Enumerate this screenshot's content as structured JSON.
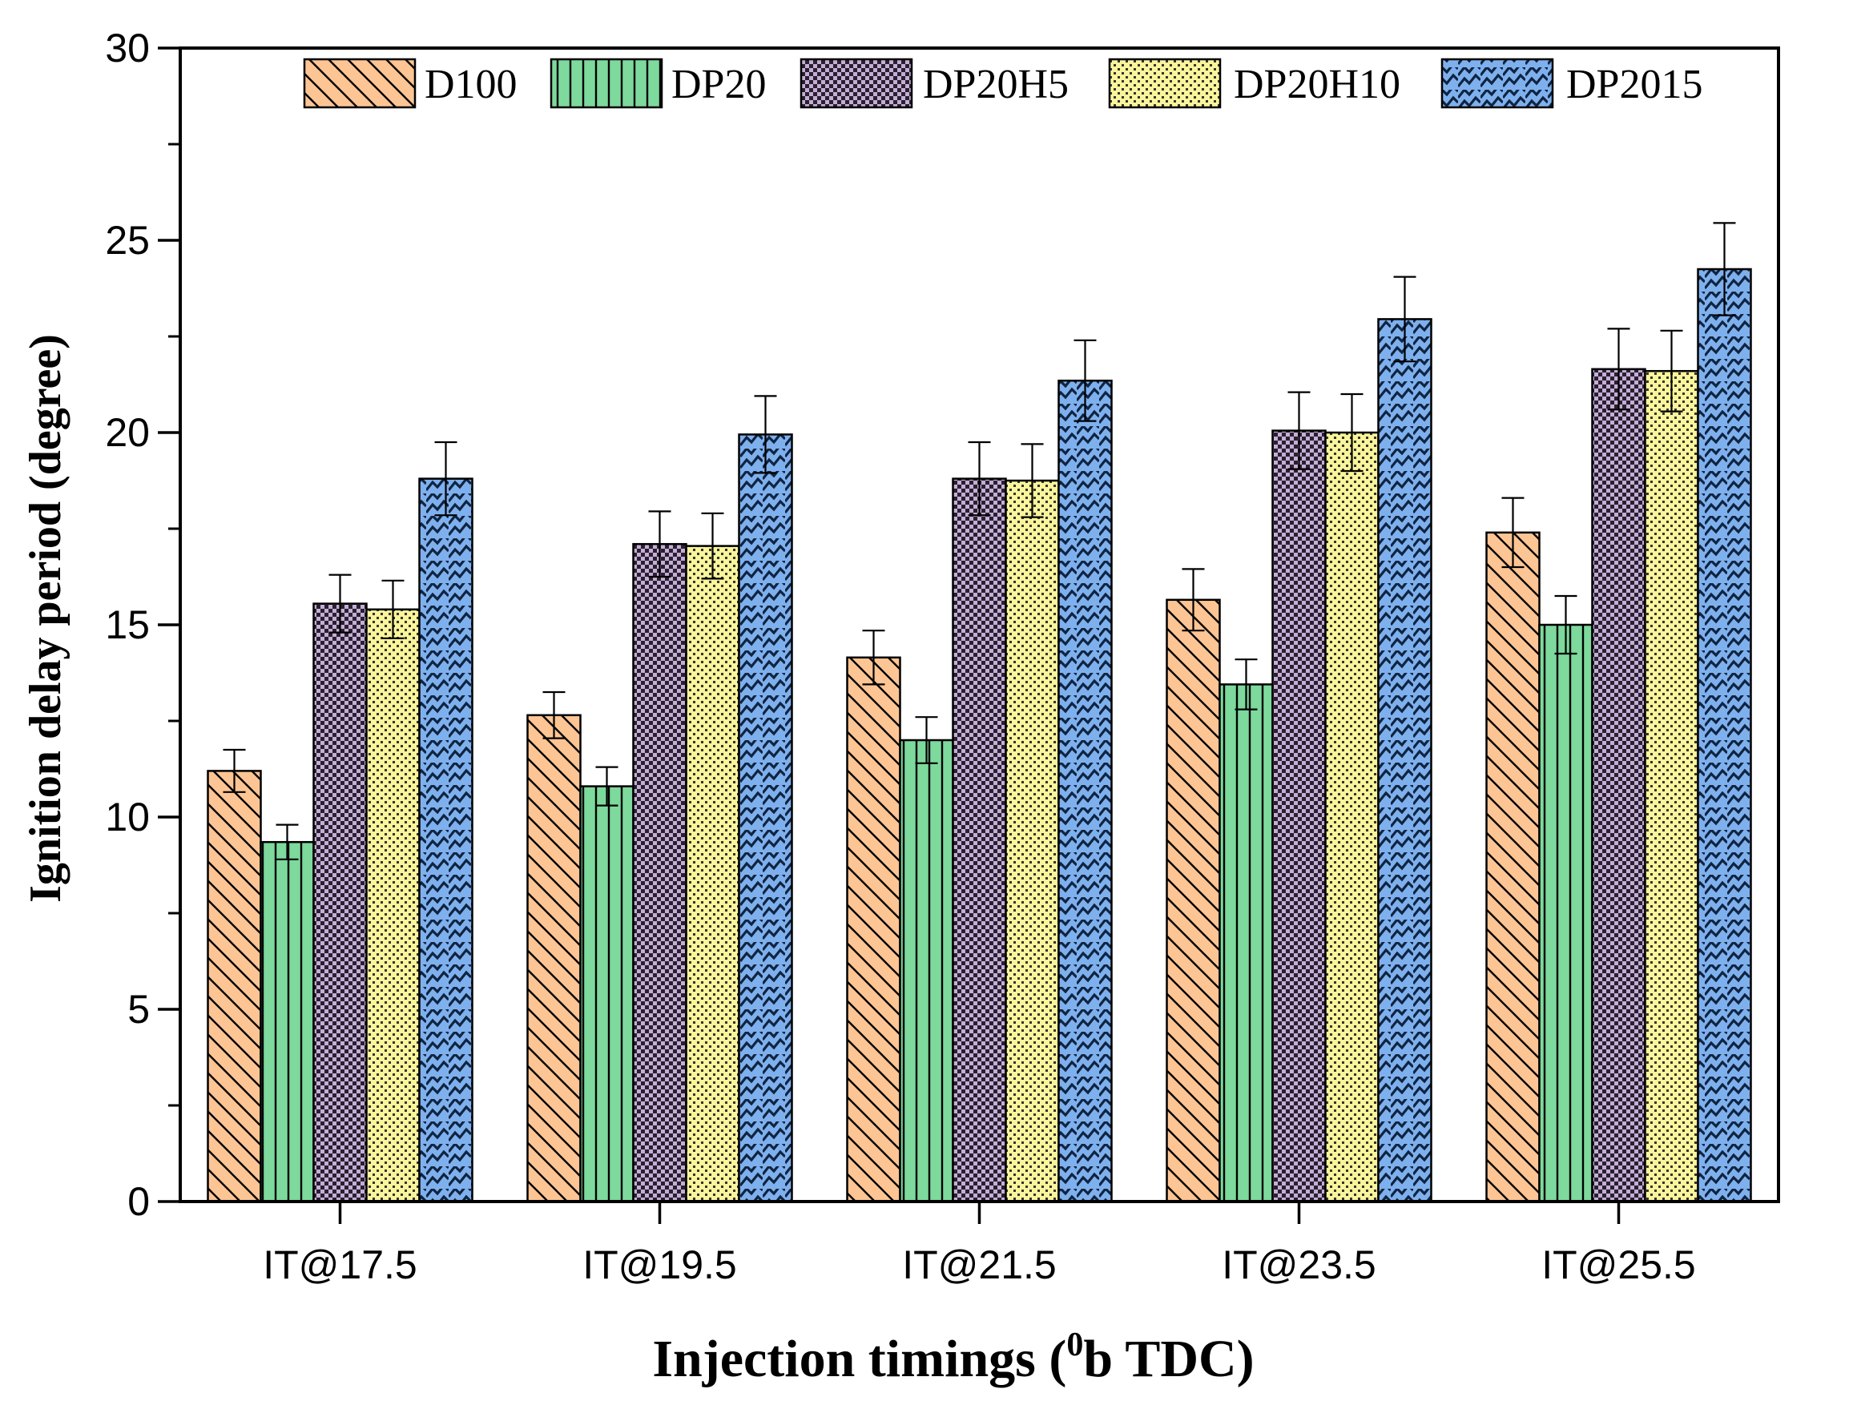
{
  "chart_data": {
    "type": "bar",
    "title": "",
    "xlabel": "Injection timings (",
    "xlabel_sup": "0",
    "xlabel_tail": "b TDC)",
    "ylabel": "Ignition delay period (degree)",
    "ylim": [
      0,
      30
    ],
    "yticks": [
      "0",
      "5",
      "10",
      "15",
      "20",
      "25",
      "30"
    ],
    "categories": [
      "IT@17.5",
      "IT@19.5",
      "IT@21.5",
      "IT@23.5",
      "IT@25.5"
    ],
    "legend_position": "top",
    "grid": false,
    "series": [
      {
        "name": "D100",
        "color": "#fdc594",
        "pattern": "diag",
        "values": [
          11.2,
          12.65,
          14.15,
          15.65,
          17.4
        ],
        "errors": [
          0.55,
          0.6,
          0.7,
          0.8,
          0.9
        ]
      },
      {
        "name": "DP20",
        "color": "#7dd99c",
        "pattern": "vert",
        "values": [
          9.35,
          10.8,
          12.0,
          13.45,
          15.0
        ],
        "errors": [
          0.45,
          0.5,
          0.6,
          0.65,
          0.75
        ]
      },
      {
        "name": "DP20H5",
        "color": "#c4aed6",
        "pattern": "check",
        "values": [
          15.55,
          17.1,
          18.8,
          20.05,
          21.65
        ],
        "errors": [
          0.75,
          0.85,
          0.95,
          1.0,
          1.05
        ]
      },
      {
        "name": "DP20H10",
        "color": "#faf59a",
        "pattern": "dots",
        "values": [
          15.4,
          17.05,
          18.75,
          20.0,
          21.6
        ],
        "errors": [
          0.75,
          0.85,
          0.95,
          1.0,
          1.05
        ]
      },
      {
        "name": "DP2015",
        "color": "#7fb0ee",
        "pattern": "wave",
        "values": [
          18.8,
          19.95,
          21.35,
          22.95,
          24.25
        ],
        "errors": [
          0.95,
          1.0,
          1.05,
          1.1,
          1.2
        ]
      }
    ]
  }
}
